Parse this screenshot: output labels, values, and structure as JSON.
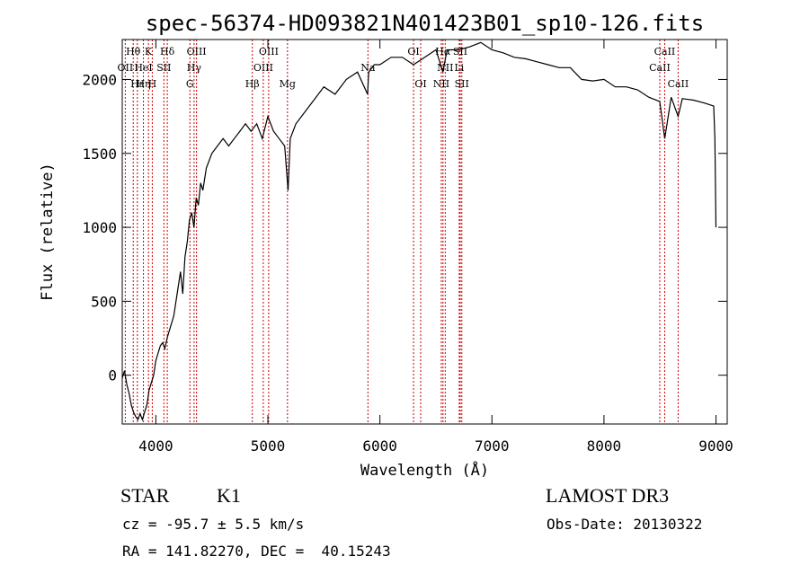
{
  "chart_data": {
    "type": "line",
    "title": "spec-56374-HD093821N401423B01_sp10-126.fits",
    "xlabel": "Wavelength (Å)",
    "ylabel": "Flux (relative)",
    "xlim": [
      3700,
      9100
    ],
    "ylim": [
      -330,
      2270
    ],
    "xticks": [
      4000,
      5000,
      6000,
      7000,
      8000,
      9000
    ],
    "yticks": [
      0,
      500,
      1000,
      1500,
      2000
    ],
    "xtick_labels": [
      "4000",
      "5000",
      "6000",
      "7000",
      "8000",
      "9000"
    ],
    "ytick_labels": [
      "0",
      "500",
      "1000",
      "1500",
      "2000"
    ],
    "series": [
      {
        "x": [
          3700,
          3720,
          3740,
          3760,
          3780,
          3800,
          3820,
          3840,
          3860,
          3880,
          3900,
          3920,
          3940,
          3960,
          3980,
          4000,
          4020,
          4040,
          4060,
          4080,
          4100,
          4120,
          4140,
          4160,
          4180,
          4200,
          4220,
          4240,
          4260,
          4280,
          4300,
          4320,
          4340,
          4360,
          4380,
          4400,
          4420,
          4450,
          4500,
          4550,
          4600,
          4650,
          4700,
          4750,
          4800,
          4850,
          4900,
          4950,
          5000,
          5050,
          5100,
          5150,
          5180,
          5200,
          5250,
          5300,
          5400,
          5500,
          5600,
          5700,
          5800,
          5890,
          5900,
          5950,
          6000,
          6100,
          6200,
          6300,
          6400,
          6500,
          6562,
          6600,
          6700,
          6800,
          6900,
          7000,
          7100,
          7200,
          7300,
          7400,
          7500,
          7600,
          7700,
          7800,
          7900,
          8000,
          8100,
          8200,
          8300,
          8400,
          8498,
          8542,
          8600,
          8662,
          8700,
          8800,
          8900,
          8980,
          8990,
          9000
        ],
        "y": [
          -20,
          30,
          -60,
          -120,
          -200,
          -250,
          -280,
          -300,
          -260,
          -300,
          -250,
          -200,
          -100,
          -50,
          0,
          100,
          150,
          200,
          220,
          180,
          250,
          300,
          350,
          400,
          500,
          600,
          700,
          550,
          800,
          900,
          1050,
          1100,
          1000,
          1200,
          1150,
          1300,
          1250,
          1400,
          1500,
          1550,
          1600,
          1550,
          1600,
          1650,
          1700,
          1650,
          1700,
          1600,
          1750,
          1650,
          1600,
          1550,
          1250,
          1600,
          1700,
          1750,
          1850,
          1950,
          1900,
          2000,
          2050,
          1900,
          2050,
          2100,
          2100,
          2150,
          2150,
          2100,
          2150,
          2200,
          2050,
          2200,
          2200,
          2220,
          2250,
          2200,
          2180,
          2150,
          2140,
          2120,
          2100,
          2080,
          2080,
          2000,
          1990,
          2000,
          1950,
          1950,
          1930,
          1880,
          1850,
          1600,
          1880,
          1750,
          1870,
          1860,
          1840,
          1820,
          1600,
          1000
        ]
      }
    ],
    "line_labels": [
      {
        "text": "Hθ",
        "x": 3798,
        "row": 0
      },
      {
        "text": "K",
        "x": 3934,
        "row": 0
      },
      {
        "text": "Hδ",
        "x": 4102,
        "row": 0
      },
      {
        "text": "OIII",
        "x": 4363,
        "row": 0
      },
      {
        "text": "OIII",
        "x": 5007,
        "row": 0
      },
      {
        "text": "OI",
        "x": 6300,
        "row": 0
      },
      {
        "text": "Hα",
        "x": 6563,
        "row": 0
      },
      {
        "text": "SII",
        "x": 6717,
        "row": 0
      },
      {
        "text": "CaII",
        "x": 8542,
        "row": 0
      },
      {
        "text": "OII",
        "x": 3727,
        "row": 1
      },
      {
        "text": "HeI",
        "x": 3889,
        "row": 1
      },
      {
        "text": "SII",
        "x": 4072,
        "row": 1
      },
      {
        "text": "Hγ",
        "x": 4341,
        "row": 1
      },
      {
        "text": "OIII",
        "x": 4959,
        "row": 1
      },
      {
        "text": "Na",
        "x": 5893,
        "row": 1
      },
      {
        "text": "NII",
        "x": 6583,
        "row": 1
      },
      {
        "text": "Li",
        "x": 6708,
        "row": 1
      },
      {
        "text": "CaII",
        "x": 8498,
        "row": 1
      },
      {
        "text": "Hε",
        "x": 3835,
        "row": 2
      },
      {
        "text": "Hη",
        "x": 3889,
        "row": 2
      },
      {
        "text": "H",
        "x": 3968,
        "row": 2
      },
      {
        "text": "G",
        "x": 4304,
        "row": 2
      },
      {
        "text": "Hβ",
        "x": 4861,
        "row": 2
      },
      {
        "text": "Mg",
        "x": 5175,
        "row": 2
      },
      {
        "text": "OI",
        "x": 6364,
        "row": 2
      },
      {
        "text": "NII",
        "x": 6548,
        "row": 2
      },
      {
        "text": "SII",
        "x": 6731,
        "row": 2
      },
      {
        "text": "CaII",
        "x": 8662,
        "row": 2
      }
    ],
    "line_markers": [
      3727,
      3798,
      3835,
      3889,
      3934,
      3968,
      4072,
      4102,
      4304,
      4341,
      4363,
      4861,
      4959,
      5007,
      5175,
      5893,
      6300,
      6364,
      6548,
      6563,
      6583,
      6708,
      6717,
      6731,
      8498,
      8542,
      8662
    ],
    "marker_color": "#cc0000"
  },
  "footer": {
    "object_type": "STAR",
    "subclass": "K1",
    "survey": "LAMOST DR3",
    "redshift": "cz = -95.7 ± 5.5 km/s",
    "obs_date": "Obs-Date: 20130322",
    "coords": "RA = 141.82270, DEC =  40.15243"
  }
}
